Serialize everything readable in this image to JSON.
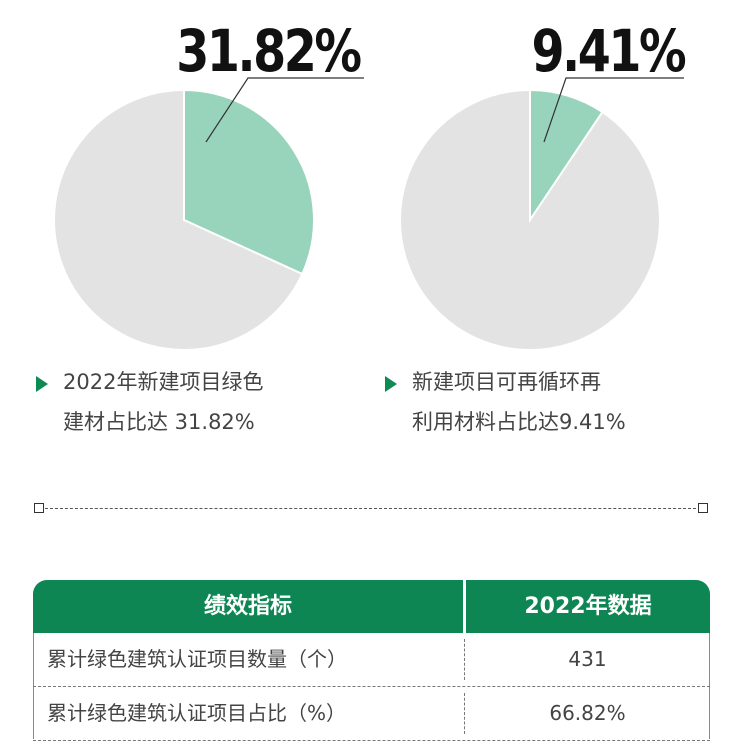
{
  "colors": {
    "accent_green": "#0d8653",
    "pie_highlight": "#98d3bb",
    "pie_rest": "#e3e3e3",
    "text": "#444444"
  },
  "chart_data": [
    {
      "type": "pie",
      "callout": "31.82%",
      "slices": [
        {
          "label": "新建绿色建材",
          "value": 31.82,
          "color": "#98d3bb"
        },
        {
          "label": "",
          "value": 68.18,
          "color": "#e3e3e3"
        }
      ],
      "caption": [
        "2022年新建项目绿色",
        "建材占比达 31.82%"
      ]
    },
    {
      "type": "pie",
      "callout": "9.41%",
      "slices": [
        {
          "label": "可再循环再利用材料",
          "value": 9.41,
          "color": "#98d3bb"
        },
        {
          "label": "",
          "value": 90.59,
          "color": "#e3e3e3"
        }
      ],
      "caption": [
        "新建项目可再循环再",
        "利用材料占比达9.41%"
      ]
    }
  ],
  "table": {
    "headers": [
      "绩效指标",
      "2022年数据"
    ],
    "rows": [
      [
        "累计绿色建筑认证项目数量（个）",
        "431"
      ],
      [
        "累计绿色建筑认证项目占比（%）",
        "66.82%"
      ]
    ]
  }
}
